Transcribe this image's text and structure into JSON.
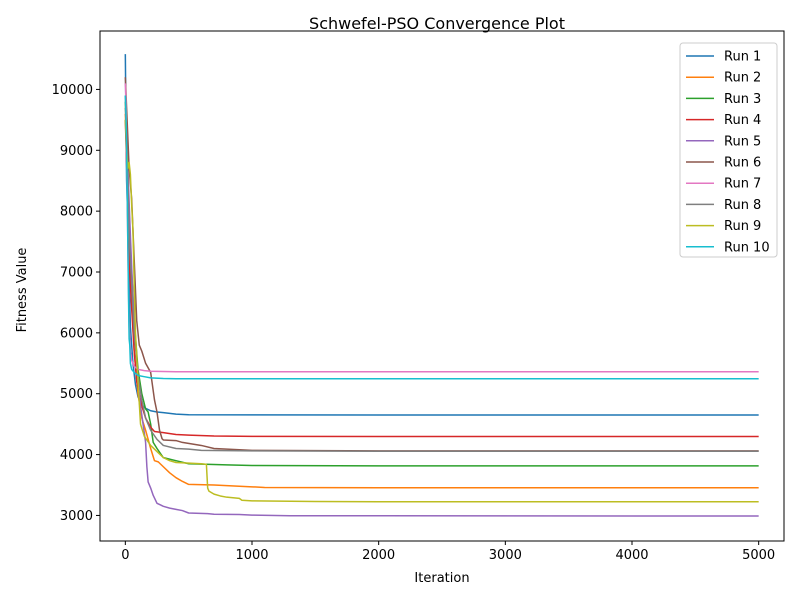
{
  "chart_data": {
    "type": "line",
    "title": "Schwefel-PSO Convergence Plot",
    "xlabel": "Iteration",
    "ylabel": "Fitness Value",
    "xlim": [
      -200,
      5200
    ],
    "ylim": [
      2580,
      10960
    ],
    "x_ticks": [
      0,
      1000,
      2000,
      3000,
      4000,
      5000
    ],
    "y_ticks": [
      3000,
      4000,
      5000,
      6000,
      7000,
      8000,
      9000,
      10000
    ],
    "x_tick_labels": [
      "0",
      "1000",
      "2000",
      "3000",
      "4000",
      "5000"
    ],
    "y_tick_labels": [
      "3000",
      "4000",
      "5000",
      "6000",
      "7000",
      "8000",
      "9000",
      "10000"
    ],
    "grid": false,
    "legend_position": "top-right",
    "series": [
      {
        "name": "Run 1",
        "color": "#1f77b4",
        "x": [
          0,
          5,
          10,
          20,
          30,
          40,
          60,
          80,
          100,
          130,
          160,
          200,
          250,
          300,
          400,
          500,
          1000,
          2000,
          5000
        ],
        "y": [
          10580,
          9500,
          8500,
          7800,
          6900,
          6100,
          5500,
          5150,
          4950,
          4820,
          4760,
          4720,
          4700,
          4690,
          4665,
          4655,
          4652,
          4650,
          4650
        ]
      },
      {
        "name": "Run 2",
        "color": "#ff7f0e",
        "x": [
          0,
          10,
          20,
          30,
          50,
          70,
          100,
          130,
          160,
          180,
          200,
          230,
          260,
          300,
          350,
          400,
          450,
          500,
          700,
          1000,
          1100,
          2000,
          5000
        ],
        "y": [
          9600,
          9000,
          8200,
          7400,
          6500,
          5700,
          5000,
          4600,
          4400,
          4250,
          4100,
          3900,
          3880,
          3800,
          3700,
          3620,
          3560,
          3510,
          3500,
          3470,
          3460,
          3455,
          3455
        ]
      },
      {
        "name": "Run 3",
        "color": "#2ca02c",
        "x": [
          0,
          10,
          20,
          30,
          50,
          70,
          100,
          130,
          160,
          180,
          200,
          220,
          250,
          300,
          400,
          500,
          800,
          1000,
          2000,
          5000
        ],
        "y": [
          9800,
          9200,
          8600,
          7800,
          7000,
          6200,
          5400,
          5000,
          4750,
          4700,
          4500,
          4200,
          4100,
          3950,
          3900,
          3850,
          3830,
          3820,
          3815,
          3815
        ]
      },
      {
        "name": "Run 4",
        "color": "#d62728",
        "x": [
          0,
          10,
          20,
          30,
          50,
          70,
          90,
          110,
          130,
          160,
          200,
          230,
          300,
          400,
          500,
          700,
          1000,
          2000,
          5000
        ],
        "y": [
          9500,
          8800,
          8000,
          7200,
          6400,
          5700,
          5200,
          5000,
          4800,
          4600,
          4450,
          4380,
          4360,
          4330,
          4320,
          4305,
          4300,
          4298,
          4298
        ]
      },
      {
        "name": "Run 5",
        "color": "#9467bd",
        "x": [
          0,
          10,
          20,
          40,
          60,
          80,
          100,
          120,
          140,
          160,
          170,
          180,
          200,
          220,
          250,
          280,
          300,
          350,
          400,
          450,
          500,
          650,
          700,
          900,
          1000,
          1300,
          5000
        ],
        "y": [
          9900,
          9300,
          8700,
          7600,
          6600,
          5900,
          5200,
          4800,
          4500,
          4200,
          3800,
          3550,
          3450,
          3330,
          3200,
          3170,
          3150,
          3120,
          3100,
          3080,
          3040,
          3030,
          3020,
          3015,
          3005,
          2995,
          2990
        ]
      },
      {
        "name": "Run 6",
        "color": "#8c564b",
        "x": [
          0,
          10,
          20,
          30,
          50,
          70,
          90,
          110,
          130,
          160,
          200,
          230,
          250,
          270,
          290,
          300,
          400,
          450,
          600,
          700,
          1000,
          2000,
          5000
        ],
        "y": [
          10200,
          9700,
          9200,
          8700,
          8200,
          7200,
          6200,
          5800,
          5700,
          5500,
          5350,
          4900,
          4700,
          4400,
          4260,
          4240,
          4230,
          4200,
          4150,
          4100,
          4070,
          4060,
          4060
        ]
      },
      {
        "name": "Run 7",
        "color": "#e377c2",
        "x": [
          0,
          5,
          10,
          15,
          20,
          25,
          30,
          40,
          50,
          70,
          100,
          150,
          200,
          300,
          400,
          1000,
          2000,
          5000
        ],
        "y": [
          10100,
          9800,
          9000,
          8200,
          7400,
          6700,
          6100,
          5700,
          5550,
          5450,
          5400,
          5380,
          5370,
          5365,
          5362,
          5360,
          5360,
          5360
        ]
      },
      {
        "name": "Run 8",
        "color": "#7f7f7f",
        "x": [
          0,
          10,
          20,
          30,
          50,
          70,
          100,
          130,
          160,
          200,
          250,
          300,
          400,
          500,
          600,
          1000,
          2000,
          5000
        ],
        "y": [
          9700,
          9200,
          8500,
          7600,
          6800,
          6000,
          5300,
          4900,
          4600,
          4400,
          4250,
          4150,
          4100,
          4090,
          4070,
          4060,
          4055,
          4055
        ]
      },
      {
        "name": "Run 9",
        "color": "#bcbd22",
        "x": [
          0,
          10,
          20,
          30,
          40,
          50,
          60,
          70,
          80,
          100,
          120,
          150,
          200,
          250,
          300,
          350,
          400,
          500,
          600,
          640,
          650,
          660,
          700,
          750,
          800,
          900,
          920,
          1000,
          1500,
          2000,
          5000
        ],
        "y": [
          9500,
          9000,
          8700,
          8800,
          8600,
          8100,
          7700,
          6800,
          6000,
          5200,
          4500,
          4300,
          4150,
          4050,
          3950,
          3900,
          3870,
          3860,
          3850,
          3840,
          3450,
          3400,
          3350,
          3320,
          3300,
          3280,
          3250,
          3240,
          3230,
          3225,
          3225
        ]
      },
      {
        "name": "Run 10",
        "color": "#17becf",
        "x": [
          0,
          5,
          10,
          15,
          20,
          25,
          30,
          35,
          40,
          50,
          70,
          100,
          150,
          200,
          300,
          400,
          1000,
          2000,
          5000
        ],
        "y": [
          9900,
          9600,
          9000,
          8300,
          7400,
          6600,
          5900,
          5800,
          5500,
          5400,
          5350,
          5300,
          5280,
          5260,
          5250,
          5245,
          5245,
          5245,
          5245
        ]
      }
    ]
  }
}
